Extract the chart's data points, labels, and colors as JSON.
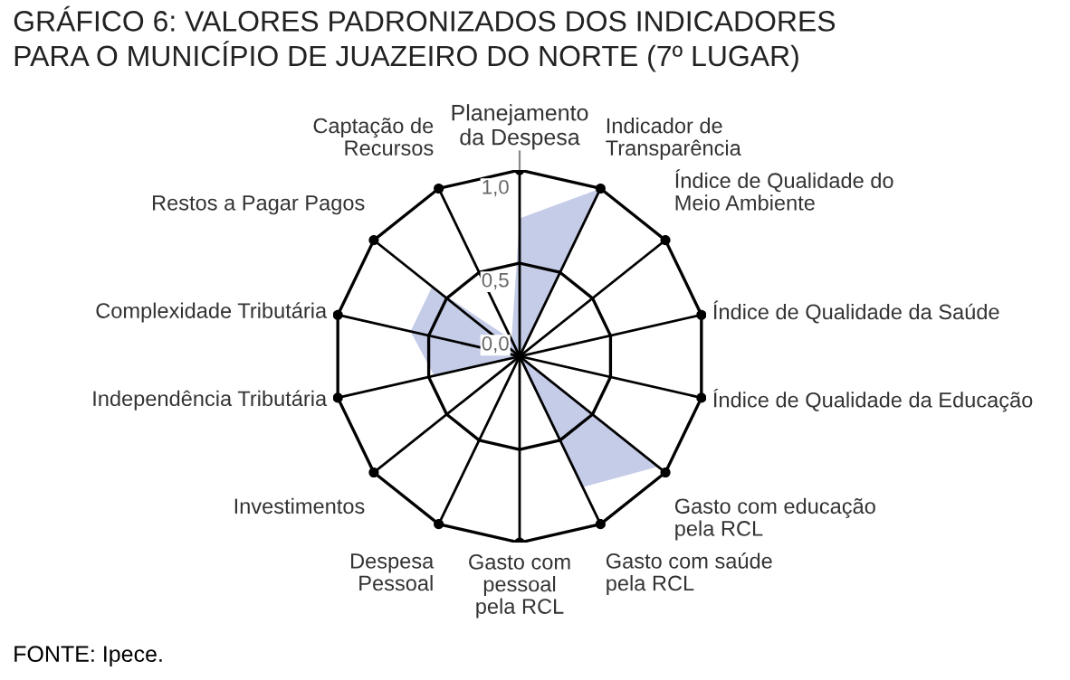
{
  "chart_data": {
    "type": "radar",
    "title": "GRÁFICO 6: VALORES PADRONIZADOS DOS INDICADORES\nPARA O MUNICÍPIO DE JUAZEIRO DO NORTE (7º LUGAR)",
    "categories": [
      "Planejamento\nda Despesa",
      "Indicador de\nTransparência",
      "Índice de Qualidade do\nMeio Ambiente",
      "Índice de Qualidade da Saúde",
      "Índice de Qualidade da Educação",
      "Gasto com educação\npela RCL",
      "Gasto com saúde\npela RCL",
      "Gasto com\npessoal\npela RCL",
      "Despesa\nPessoal",
      "Investimentos",
      "Independência Tributária",
      "Complexidade Tributária",
      "Restos a Pagar Pagos",
      "Captação de\nRecursos"
    ],
    "series": [
      {
        "color": "#c5cce8",
        "values": [
          0.74,
          1.0,
          0,
          0,
          0,
          0.95,
          0.78,
          0,
          0,
          0,
          0.47,
          0.6,
          0.6,
          0.1
        ]
      }
    ],
    "ylim": [
      0,
      1.0
    ],
    "yticks": [
      {
        "value": 0,
        "label": "0,0"
      },
      {
        "value": 0.5,
        "label": "0,5"
      },
      {
        "value": 1.0,
        "label": "1,0"
      }
    ],
    "marker": "circle",
    "annotations": [
      "FONTE: Ipece."
    ]
  }
}
